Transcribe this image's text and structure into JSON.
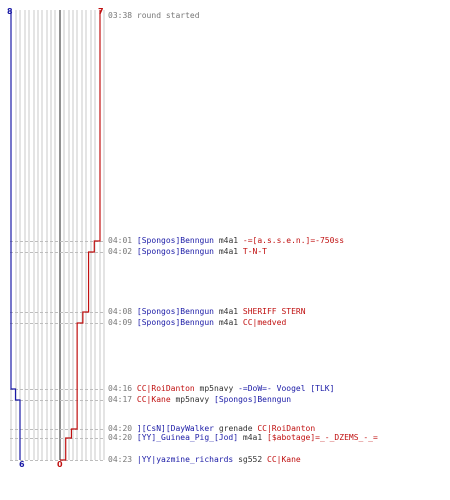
{
  "scores": {
    "blue_start": "8",
    "red_start": "7",
    "blue_end": "6",
    "red_end": "0"
  },
  "colors": {
    "blue": "#1a1aa6",
    "red": "#c01010",
    "grid": "#c8c8c8",
    "center": "#555555",
    "dash": "#bdbdbd",
    "time": "#777777"
  },
  "events": [
    {
      "time": "03:38",
      "note": "round started"
    },
    {
      "time": "04:01",
      "killer": "[Spongos]Benngun",
      "killer_team": "blue",
      "weapon": "m4a1",
      "victim": "-=[a.s.s.e.n.]=-750ss",
      "victim_team": "red"
    },
    {
      "time": "04:02",
      "killer": "[Spongos]Benngun",
      "killer_team": "blue",
      "weapon": "m4a1",
      "victim": "T-N-T",
      "victim_team": "red"
    },
    {
      "time": "04:08",
      "killer": "[Spongos]Benngun",
      "killer_team": "blue",
      "weapon": "m4a1",
      "victim": "SHERIFF STERN",
      "victim_team": "red"
    },
    {
      "time": "04:09",
      "killer": "[Spongos]Benngun",
      "killer_team": "blue",
      "weapon": "m4a1",
      "victim": "CC|medved",
      "victim_team": "red"
    },
    {
      "time": "04:16",
      "killer": "CC|RoiDanton",
      "killer_team": "red",
      "weapon": "mp5navy",
      "victim": "-=DoW=- Voogel [TLK]",
      "victim_team": "blue"
    },
    {
      "time": "04:17",
      "killer": "CC|Kane",
      "killer_team": "red",
      "weapon": "mp5navy",
      "victim": "[Spongos]Benngun",
      "victim_team": "blue"
    },
    {
      "time": "04:20",
      "killer": "][CsN][DayWalker",
      "killer_team": "blue",
      "weapon": "grenade",
      "victim": "CC|RoiDanton",
      "victim_team": "red"
    },
    {
      "time": "04:20",
      "killer": "[YY]_Guinea_Pig_[Jod]",
      "killer_team": "blue",
      "weapon": "m4a1",
      "victim": "[$abotage]=_-_DZEMS_-_=",
      "victim_team": "red"
    },
    {
      "time": "04:23",
      "killer": "|YY|yazmine_richards",
      "killer_team": "blue",
      "weapon": "sg552",
      "victim": "CC|Kane",
      "victim_team": "red"
    }
  ]
}
